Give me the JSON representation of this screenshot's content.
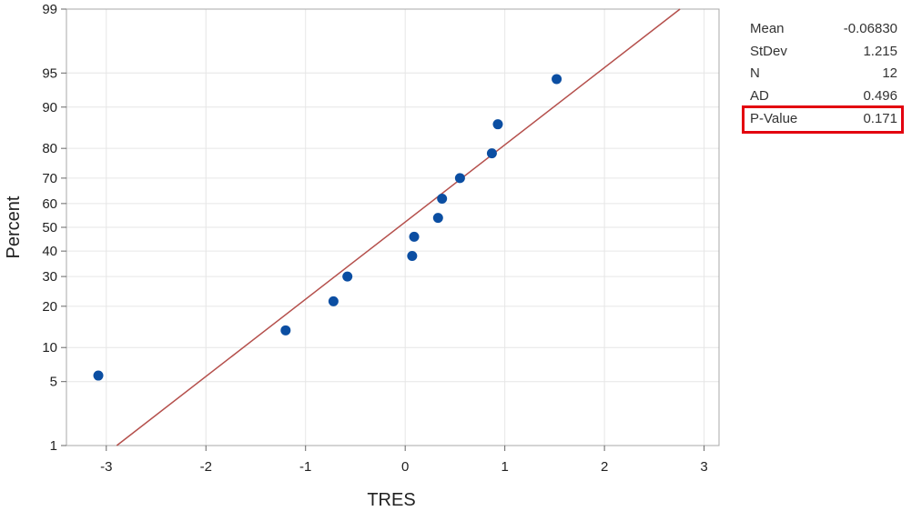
{
  "chart_data": {
    "type": "scatter",
    "subtype": "normal-probability-plot",
    "xlabel": "TRES",
    "ylabel": "Percent",
    "xlim": [
      -3.4,
      3.15
    ],
    "x_ticks": [
      -3,
      -2,
      -1,
      0,
      1,
      2,
      3
    ],
    "y_ticks": [
      1,
      5,
      10,
      20,
      30,
      40,
      50,
      60,
      70,
      80,
      90,
      95,
      99
    ],
    "y_scale": "normal-probability",
    "grid": true,
    "points": [
      {
        "x": -3.08,
        "y": 5.7
      },
      {
        "x": -1.2,
        "y": 13.6
      },
      {
        "x": -0.72,
        "y": 21.5
      },
      {
        "x": -0.58,
        "y": 30.0
      },
      {
        "x": 0.07,
        "y": 38.0
      },
      {
        "x": 0.09,
        "y": 46.0
      },
      {
        "x": 0.33,
        "y": 54.0
      },
      {
        "x": 0.37,
        "y": 62.0
      },
      {
        "x": 0.55,
        "y": 70.0
      },
      {
        "x": 0.87,
        "y": 78.5
      },
      {
        "x": 0.93,
        "y": 86.4
      },
      {
        "x": 1.52,
        "y": 94.3
      }
    ],
    "fit_line": {
      "mean": -0.0683,
      "stdev": 1.215
    },
    "point_color": "#0b4ea2",
    "line_color": "#b5504c"
  },
  "stats": [
    {
      "label": "Mean",
      "value": "-0.06830"
    },
    {
      "label": "StDev",
      "value": "1.215"
    },
    {
      "label": "N",
      "value": "12"
    },
    {
      "label": "AD",
      "value": "0.496"
    },
    {
      "label": "P-Value",
      "value": "0.171",
      "highlight": true
    }
  ]
}
